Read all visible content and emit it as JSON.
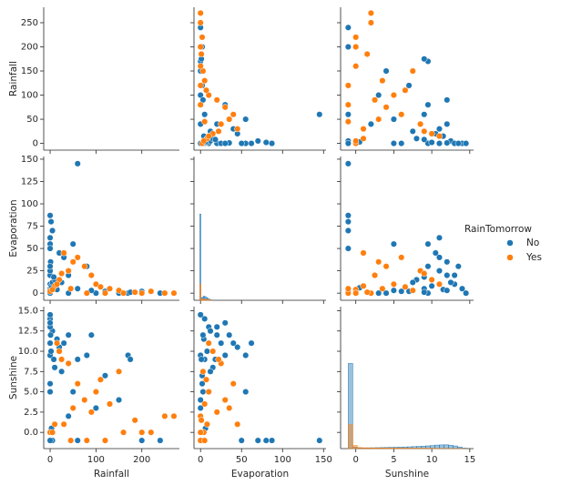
{
  "chart_data": {
    "type": "pairplot",
    "legend_title": "RainTomorrow",
    "variables": [
      {
        "name": "Rainfall",
        "lim": [
          -14,
          282
        ],
        "xticks": [
          0,
          100,
          200
        ],
        "yticks": [
          0,
          50,
          100,
          150,
          200,
          250
        ]
      },
      {
        "name": "Evaporation",
        "lim": [
          -8,
          153
        ],
        "xticks": [
          0,
          50,
          100,
          150
        ],
        "yticks": [
          0,
          25,
          50,
          75,
          100,
          125,
          150
        ]
      },
      {
        "name": "Sunshine",
        "lim": [
          -2,
          15.5
        ],
        "xticks": [
          0,
          5,
          10,
          15
        ],
        "yticks": [
          {
            "value": 0,
            "label": "0.0"
          },
          {
            "value": 2.5,
            "label": "2.5"
          },
          {
            "value": 5,
            "label": "5.0"
          },
          {
            "value": 7.5,
            "label": "7.5"
          },
          {
            "value": 10,
            "label": "10.0"
          },
          {
            "value": 12.5,
            "label": "12.5"
          },
          {
            "value": 15,
            "label": "15.0"
          }
        ]
      }
    ],
    "series": [
      {
        "name": "No",
        "color": "#1f77b4",
        "values": [
          [
            60,
            0,
            2,
            5,
            0,
            0,
            0,
            30,
            80,
            40,
            0,
            0,
            2,
            5,
            10,
            0,
            0,
            1,
            60,
            120,
            170,
            150,
            240,
            200,
            100,
            40,
            0,
            0,
            3,
            20,
            0,
            8,
            15,
            0,
            50,
            175,
            90,
            25
          ],
          [
            145,
            87,
            80,
            70,
            62,
            55,
            50,
            40,
            30,
            20,
            10,
            5,
            8,
            12,
            15,
            20,
            25,
            35,
            5,
            2,
            0,
            0,
            0,
            2,
            0,
            0,
            2,
            3,
            6,
            45,
            30,
            18,
            4,
            0,
            55,
            1,
            3,
            12
          ],
          [
            -1,
            -1,
            -1,
            -1,
            11,
            9.5,
            -1,
            11,
            9.5,
            12,
            13,
            14,
            10,
            12.5,
            8,
            13,
            11,
            12,
            9,
            7,
            9.5,
            4,
            -1,
            -1,
            3,
            2,
            6,
            5,
            0.5,
            10.5,
            13.5,
            9,
            11.5,
            14.5,
            5,
            9,
            12,
            7.5
          ]
        ]
      },
      {
        "name": "Yes",
        "color": "#ff7f0e",
        "values": [
          [
            270,
            250,
            220,
            185,
            150,
            130,
            100,
            90,
            75,
            60,
            40,
            20,
            10,
            0,
            5,
            30,
            120,
            80,
            45,
            200,
            15,
            50,
            160,
            110,
            25
          ],
          [
            0,
            0,
            2,
            1,
            3,
            5,
            10,
            20,
            30,
            40,
            25,
            15,
            8,
            2,
            4,
            45,
            0,
            0,
            5,
            0,
            10,
            35,
            0,
            7,
            22
          ],
          [
            2,
            2,
            0,
            1.5,
            7.5,
            3.5,
            5,
            2.5,
            4,
            6,
            8.5,
            10,
            1,
            0,
            0,
            1,
            -1,
            -1,
            -1,
            0,
            11,
            3,
            0,
            6.5,
            9
          ]
        ]
      }
    ],
    "diagonal": [
      null,
      {
        "bins": [
          -1,
          0.5,
          2,
          3.5,
          5,
          6.5,
          8,
          9.5,
          11,
          12.5,
          14
        ],
        "counts": [
          [
            2100,
            60,
            80,
            100,
            90,
            70,
            50,
            30,
            20,
            10
          ],
          [
            400,
            20,
            30,
            30,
            25,
            20,
            15,
            10,
            5,
            3
          ]
        ]
      },
      {
        "bins": [
          -1,
          -0.4,
          0.2,
          0.8,
          1.4,
          2,
          2.6,
          3.2,
          3.8,
          4.4,
          5,
          5.6,
          6.2,
          6.8,
          7.4,
          8,
          8.6,
          9.2,
          9.8,
          10.4,
          11,
          11.6,
          12.2,
          12.8,
          13.4,
          14,
          14.6
        ],
        "counts": [
          [
            1600,
            30,
            15,
            12,
            14,
            16,
            18,
            20,
            22,
            24,
            26,
            28,
            30,
            34,
            38,
            42,
            46,
            52,
            58,
            66,
            70,
            72,
            64,
            50,
            30,
            10
          ],
          [
            450,
            60,
            20,
            16,
            14,
            12,
            12,
            12,
            10,
            10,
            10,
            9,
            9,
            8,
            8,
            8,
            7,
            7,
            6,
            5,
            4,
            3,
            2,
            2,
            1,
            1
          ]
        ]
      }
    ]
  }
}
